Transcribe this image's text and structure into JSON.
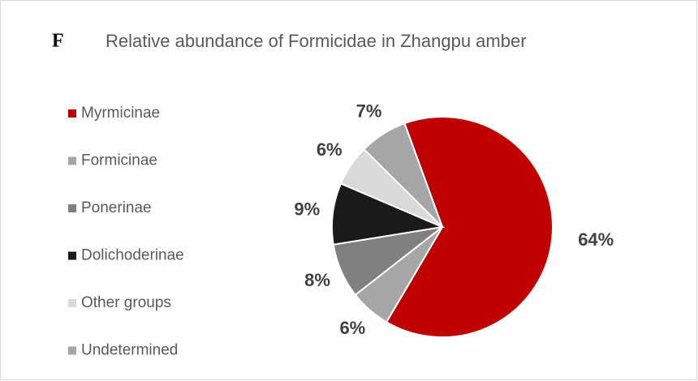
{
  "chart_data": {
    "type": "pie",
    "panel_label": "F",
    "title": "Relative abundance of Formicidae in Zhangpu amber",
    "categories": [
      "Myrmicinae",
      "Formicinae",
      "Ponerinae",
      "Dolichoderinae",
      "Other groups",
      "Undetermined"
    ],
    "values": [
      64,
      6,
      8,
      9,
      6,
      7
    ],
    "value_labels": [
      "64%",
      "6%",
      "8%",
      "9%",
      "6%",
      "7%"
    ],
    "colors": [
      "#c00000",
      "#a6a6a6",
      "#808080",
      "#1a1a1a",
      "#d9d9d9",
      "#a6a6a6"
    ],
    "legend": "left"
  }
}
